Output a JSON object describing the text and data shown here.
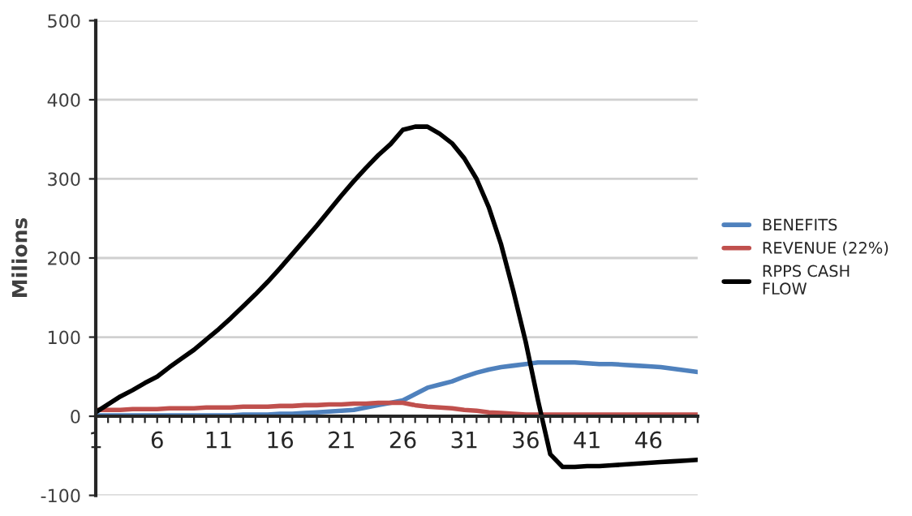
{
  "chart_data": {
    "type": "line",
    "ylabel": "Milions",
    "categories": [
      "1",
      null,
      null,
      null,
      null,
      "6",
      null,
      null,
      null,
      null,
      "11",
      null,
      null,
      null,
      null,
      "16",
      null,
      null,
      null,
      null,
      "21",
      null,
      null,
      null,
      null,
      "26",
      null,
      null,
      null,
      null,
      "31",
      null,
      null,
      null,
      null,
      "36",
      null,
      null,
      null,
      null,
      "41",
      null,
      null,
      null,
      null,
      "46",
      null,
      null,
      null,
      null
    ],
    "series": [
      {
        "name": "BENEFITS",
        "color": "#4f81bd",
        "values": [
          1,
          1,
          1,
          1,
          1,
          1,
          1,
          1,
          1,
          1,
          1,
          1,
          2,
          2,
          2,
          3,
          3,
          4,
          5,
          6,
          7,
          8,
          11,
          14,
          17,
          20,
          28,
          36,
          40,
          44,
          50,
          55,
          59,
          62,
          64,
          66,
          68,
          68,
          68,
          68,
          67,
          66,
          66,
          65,
          64,
          63,
          62,
          60,
          58,
          56
        ]
      },
      {
        "name": "REVENUE (22%)",
        "color": "#c0504d",
        "values": [
          8,
          8,
          8,
          9,
          9,
          9,
          10,
          10,
          10,
          11,
          11,
          11,
          12,
          12,
          12,
          13,
          13,
          14,
          14,
          15,
          15,
          16,
          16,
          17,
          17,
          17,
          14,
          12,
          11,
          10,
          8,
          7,
          5,
          4,
          3,
          2,
          2,
          2,
          2,
          2,
          2,
          2,
          2,
          2,
          2,
          2,
          2,
          2,
          2,
          2
        ]
      },
      {
        "name": "RPPS CASH\nFLOW",
        "color": "#000000",
        "values": [
          5,
          15,
          25,
          33,
          42,
          50,
          62,
          73,
          84,
          97,
          110,
          124,
          139,
          154,
          170,
          187,
          205,
          223,
          241,
          260,
          279,
          297,
          314,
          330,
          344,
          362,
          366,
          366,
          357,
          345,
          326,
          300,
          264,
          217,
          158,
          94,
          20,
          -48,
          -64,
          -64,
          -63,
          -63,
          -62,
          -61,
          -60,
          -59,
          -58,
          -57,
          -56,
          -55
        ]
      }
    ],
    "ylim": [
      -100,
      500
    ],
    "yticks": [
      -100,
      0,
      100,
      200,
      300,
      400,
      500
    ],
    "grid": "y",
    "legend": "right",
    "marker": "none",
    "line_style": "solid"
  }
}
